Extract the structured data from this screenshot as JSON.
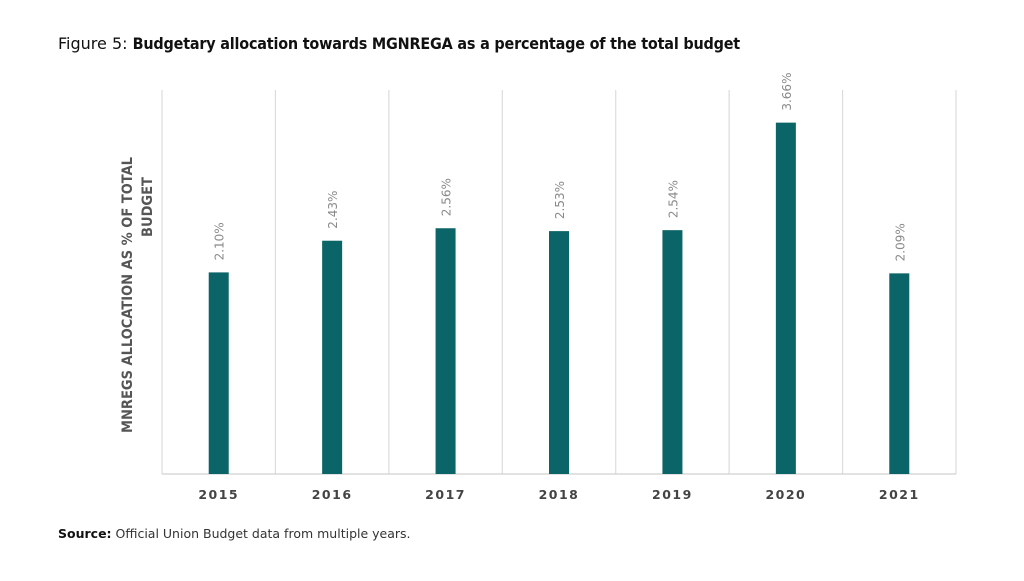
{
  "title_prefix": "Figure 5:",
  "title_main": "Budgetary allocation towards MGNREGA as a percentage of the total budget",
  "source_label": "Source:",
  "source_text": "Official Union Budget data from multiple years.",
  "chart_data": {
    "type": "bar",
    "title": "Figure 5: Budgetary allocation towards MGNREGA as a percentage of the total budget",
    "xlabel": "",
    "ylabel": "MNREGS ALLOCATION AS % OF TOTAL BUDGET",
    "ylabel_lines": [
      "MNREGS ALLOCATION AS % OF TOTAL",
      "BUDGET"
    ],
    "categories": [
      "2015",
      "2016",
      "2017",
      "2018",
      "2019",
      "2020",
      "2021"
    ],
    "values": [
      2.1,
      2.43,
      2.56,
      2.53,
      2.54,
      3.66,
      2.09
    ],
    "data_labels": [
      "2.10%",
      "2.43%",
      "2.56%",
      "2.53%",
      "2.54%",
      "3.66%",
      "2.09%"
    ],
    "ylim": [
      0,
      4
    ],
    "grid": "vertical separators between categories",
    "bar_color": "#0b6468",
    "legend": "none"
  }
}
